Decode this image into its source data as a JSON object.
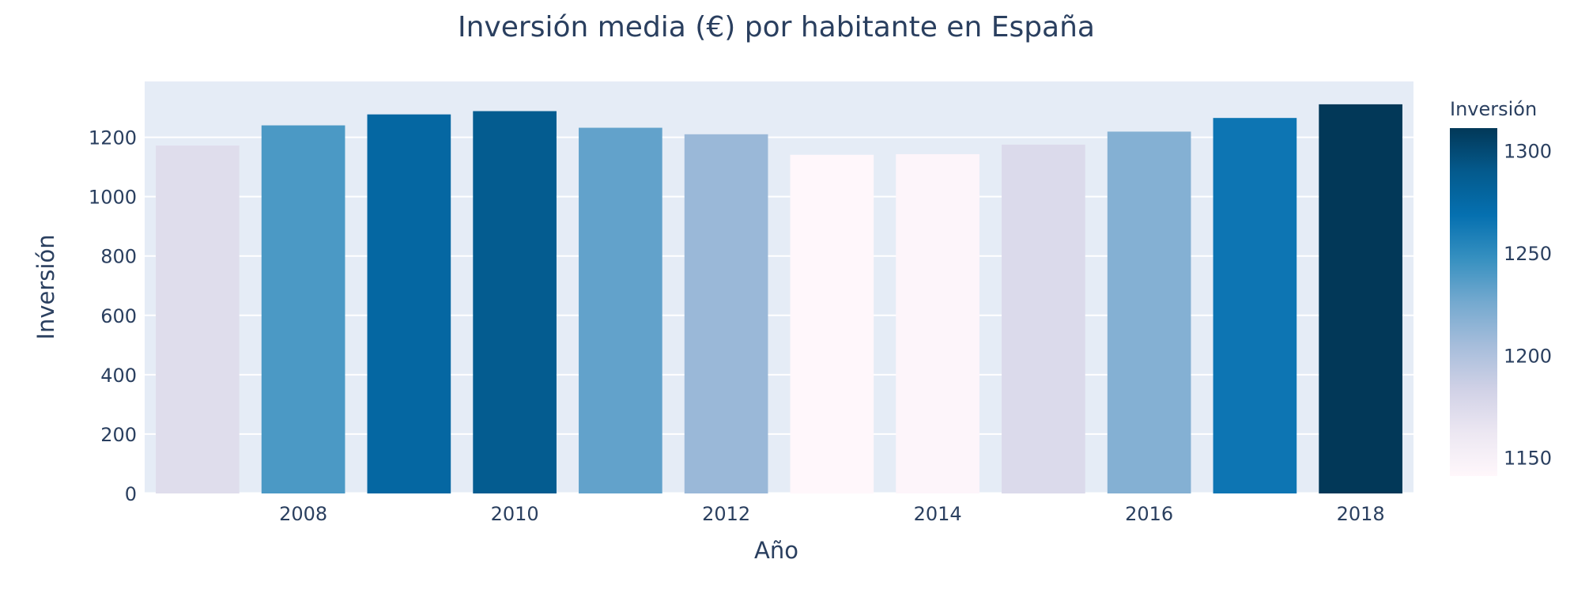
{
  "chart_data": {
    "type": "bar",
    "title": "Inversión media (€) por habitante en España",
    "xlabel": "Año",
    "ylabel": "Inversión",
    "x": [
      2007,
      2008,
      2009,
      2010,
      2011,
      2012,
      2013,
      2014,
      2015,
      2016,
      2017,
      2018
    ],
    "values": [
      1172,
      1240,
      1277,
      1288,
      1232,
      1210,
      1141,
      1143,
      1175,
      1219,
      1265,
      1311
    ],
    "ylim": [
      0,
      1388
    ],
    "yticks": [
      0,
      200,
      400,
      600,
      800,
      1000,
      1200
    ],
    "xticks": [
      2008,
      2010,
      2012,
      2014,
      2016,
      2018
    ],
    "grid": true,
    "plot_background": "#e5ecf6",
    "colorbar": {
      "title": "Inversión",
      "range": [
        1141,
        1311
      ],
      "ticks": [
        1150,
        1200,
        1250,
        1300
      ],
      "colorscale": [
        "#fff7fb",
        "#ece7f2",
        "#d0d1e6",
        "#a6bddb",
        "#74a9cf",
        "#3690c0",
        "#0570b0",
        "#045a8d",
        "#023858"
      ],
      "placement": "right"
    }
  }
}
